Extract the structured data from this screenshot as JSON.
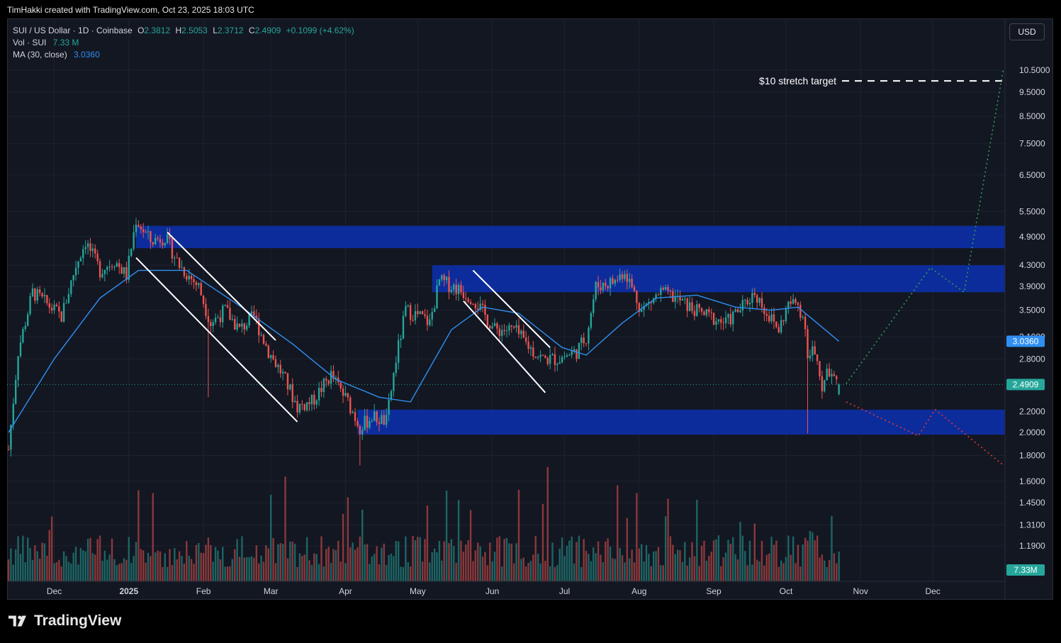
{
  "header": {
    "attribution": "TimHakki created with TradingView.com, Oct 23, 2025 18:03 UTC"
  },
  "legend": {
    "symbol": "SUI / US Dollar · 1D · Coinbase",
    "o_label": "O",
    "o_value": "2.3812",
    "h_label": "H",
    "h_value": "2.5053",
    "l_label": "L",
    "l_value": "2.3712",
    "c_label": "C",
    "c_value": "2.4909",
    "change": "+0.1099 (+4.62%)",
    "vol_label": "Vol · SUI",
    "vol_value": "7.33 M",
    "ma_label": "MA (30, close)",
    "ma_value": "3.0360"
  },
  "currency_button": "USD",
  "brand": {
    "name": "TradingView"
  },
  "colors": {
    "up": "#26a69a",
    "down": "#ef5350",
    "ma": "#2f8ff2",
    "zone": "#0d2fa8",
    "bg": "#131722"
  },
  "chart_data": {
    "type": "candlestick",
    "symbol": "SUI / US Dollar",
    "interval": "1D",
    "exchange": "Coinbase",
    "y_scale": "log",
    "y_ticks": [
      "10.5000",
      "9.5000",
      "8.5000",
      "7.5000",
      "6.5000",
      "5.5000",
      "4.9000",
      "4.3000",
      "3.9000",
      "3.5000",
      "3.1000",
      "2.8000",
      "2.4909",
      "2.2000",
      "2.0000",
      "1.8000",
      "1.6000",
      "1.4500",
      "1.3100",
      "1.1900"
    ],
    "x_ticks": [
      "Dec",
      "2025",
      "Feb",
      "Mar",
      "Apr",
      "May",
      "Jun",
      "Jul",
      "Aug",
      "Sep",
      "Oct",
      "Nov",
      "Dec"
    ],
    "last_price": "2.4909",
    "ma_last": "3.0360",
    "volume_last": "7.33M",
    "price_path": [
      [
        "2024-11-12",
        1.85
      ],
      [
        "2024-11-16",
        2.9
      ],
      [
        "2024-11-22",
        3.8
      ],
      [
        "2024-11-28",
        3.6
      ],
      [
        "2024-12-04",
        3.4
      ],
      [
        "2024-12-10",
        4.3
      ],
      [
        "2024-12-14",
        4.8
      ],
      [
        "2024-12-20",
        4.2
      ],
      [
        "2024-12-26",
        4.4
      ],
      [
        "2024-12-31",
        4.1
      ],
      [
        "2025-01-04",
        5.3
      ],
      [
        "2025-01-10",
        4.8
      ],
      [
        "2025-01-16",
        4.9
      ],
      [
        "2025-01-22",
        4.3
      ],
      [
        "2025-01-30",
        3.9
      ],
      [
        "2025-02-04",
        3.3
      ],
      [
        "2025-02-10",
        3.5
      ],
      [
        "2025-02-16",
        3.2
      ],
      [
        "2025-02-22",
        3.4
      ],
      [
        "2025-02-28",
        2.9
      ],
      [
        "2025-03-06",
        2.6
      ],
      [
        "2025-03-12",
        2.25
      ],
      [
        "2025-03-18",
        2.3
      ],
      [
        "2025-03-26",
        2.6
      ],
      [
        "2025-04-02",
        2.3
      ],
      [
        "2025-04-07",
        2.05
      ],
      [
        "2025-04-12",
        2.15
      ],
      [
        "2025-04-18",
        2.1
      ],
      [
        "2025-04-22",
        2.8
      ],
      [
        "2025-04-26",
        3.5
      ],
      [
        "2025-05-02",
        3.4
      ],
      [
        "2025-05-06",
        3.3
      ],
      [
        "2025-05-10",
        4.0
      ],
      [
        "2025-05-16",
        3.9
      ],
      [
        "2025-05-24",
        3.7
      ],
      [
        "2025-06-02",
        3.2
      ],
      [
        "2025-06-10",
        3.2
      ],
      [
        "2025-06-18",
        2.9
      ],
      [
        "2025-06-22",
        2.8
      ],
      [
        "2025-06-28",
        2.8
      ],
      [
        "2025-07-06",
        2.9
      ],
      [
        "2025-07-10",
        3.1
      ],
      [
        "2025-07-14",
        3.9
      ],
      [
        "2025-07-22",
        4.0
      ],
      [
        "2025-07-26",
        4.2
      ],
      [
        "2025-08-02",
        3.5
      ],
      [
        "2025-08-10",
        3.8
      ],
      [
        "2025-08-16",
        3.7
      ],
      [
        "2025-08-24",
        3.5
      ],
      [
        "2025-08-30",
        3.4
      ],
      [
        "2025-09-06",
        3.3
      ],
      [
        "2025-09-14",
        3.6
      ],
      [
        "2025-09-18",
        3.8
      ],
      [
        "2025-09-24",
        3.4
      ],
      [
        "2025-09-28",
        3.2
      ],
      [
        "2025-10-02",
        3.6
      ],
      [
        "2025-10-06",
        3.6
      ],
      [
        "2025-10-09",
        3.3
      ],
      [
        "2025-10-10",
        2.75
      ],
      [
        "2025-10-12",
        2.9
      ],
      [
        "2025-10-16",
        2.5
      ],
      [
        "2025-10-20",
        2.7
      ],
      [
        "2025-10-23",
        2.4909
      ]
    ],
    "ma_path": [
      [
        "2024-11-12",
        2.0
      ],
      [
        "2024-12-01",
        2.8
      ],
      [
        "2024-12-20",
        3.7
      ],
      [
        "2025-01-05",
        4.2
      ],
      [
        "2025-01-25",
        4.2
      ],
      [
        "2025-02-15",
        3.6
      ],
      [
        "2025-03-10",
        3.0
      ],
      [
        "2025-03-28",
        2.55
      ],
      [
        "2025-04-15",
        2.35
      ],
      [
        "2025-04-28",
        2.3
      ],
      [
        "2025-05-15",
        3.2
      ],
      [
        "2025-05-28",
        3.55
      ],
      [
        "2025-06-12",
        3.45
      ],
      [
        "2025-06-30",
        2.95
      ],
      [
        "2025-07-10",
        2.85
      ],
      [
        "2025-07-25",
        3.3
      ],
      [
        "2025-08-08",
        3.7
      ],
      [
        "2025-08-25",
        3.75
      ],
      [
        "2025-09-10",
        3.55
      ],
      [
        "2025-09-25",
        3.5
      ],
      [
        "2025-10-06",
        3.55
      ],
      [
        "2025-10-23",
        3.036
      ]
    ],
    "zones": [
      {
        "from": "2025-01-04",
        "to": "2025-12-31",
        "low": 4.65,
        "high": 5.15
      },
      {
        "from": "2025-05-07",
        "to": "2025-12-31",
        "low": 3.8,
        "high": 4.3
      },
      {
        "from": "2025-04-06",
        "to": "2025-12-31",
        "low": 1.98,
        "high": 2.22
      }
    ],
    "channels": [
      {
        "upper": [
          [
            "2025-01-17",
            5.0
          ],
          [
            "2025-03-03",
            3.05
          ]
        ],
        "lower": [
          [
            "2025-01-04",
            4.45
          ],
          [
            "2025-03-12",
            2.1
          ]
        ]
      },
      {
        "upper": [
          [
            "2025-05-24",
            4.2
          ],
          [
            "2025-06-25",
            2.95
          ]
        ],
        "lower": [
          [
            "2025-05-20",
            3.65
          ],
          [
            "2025-06-23",
            2.4
          ]
        ]
      }
    ],
    "target_label": "$10 stretch target",
    "target_value": 10.0,
    "bull_projection": [
      [
        "2025-10-26",
        2.5
      ],
      [
        "2025-11-30",
        4.25
      ],
      [
        "2025-12-14",
        3.8
      ],
      [
        "2025-12-31",
        10.6
      ]
    ],
    "bear_projection": [
      [
        "2025-10-26",
        2.3
      ],
      [
        "2025-11-25",
        1.97
      ],
      [
        "2025-12-02",
        2.22
      ],
      [
        "2025-12-31",
        1.72
      ]
    ]
  }
}
